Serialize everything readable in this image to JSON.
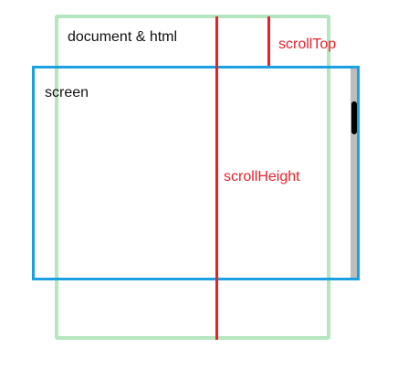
{
  "labels": {
    "document": "document & html",
    "screen": "screen",
    "scroll_top": "scrollTop",
    "scroll_height": "scrollHeight"
  },
  "colors": {
    "document_border": "#b4e6bf",
    "screen_border": "#1ba1e2",
    "measure_line": "#e8202a",
    "scrollbar_track": "#bdbdbd",
    "scrollbar_thumb": "#000000"
  }
}
